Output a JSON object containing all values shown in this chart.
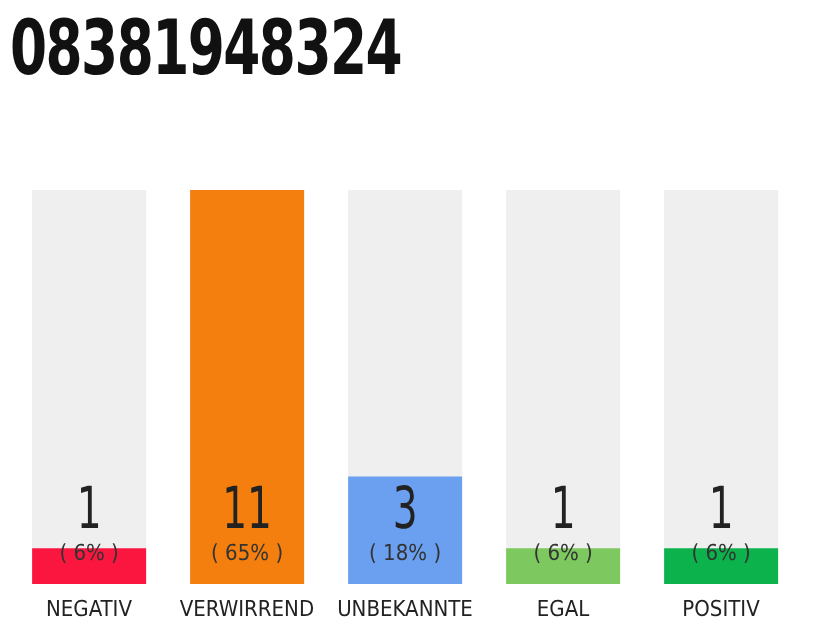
{
  "chart_data": {
    "type": "bar",
    "title": "08381948324",
    "categories": [
      "NEGATIV",
      "VERWIRREND",
      "UNBEKANNTE",
      "EGAL",
      "POSITIV"
    ],
    "values": [
      1,
      11,
      3,
      1,
      1
    ],
    "colors": [
      "#fa163f",
      "#f47f0f",
      "#6aa0ef",
      "#7ec95f",
      "#0cb34c"
    ],
    "ylim": [
      0,
      11
    ],
    "tick_labels": "x",
    "data_labels": true,
    "grid": false,
    "legend": false,
    "annotations": [
      "( 6% )",
      "( 65% )",
      "( 18% )",
      "( 6% )",
      "( 6% )"
    ]
  }
}
